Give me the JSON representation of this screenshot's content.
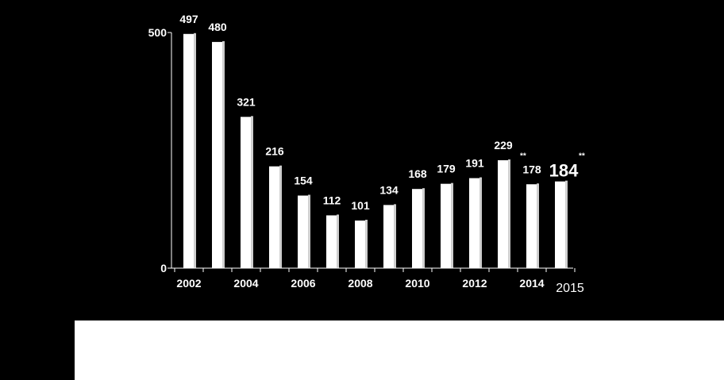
{
  "colors": {
    "background": "#000000",
    "bar": "#ffffff",
    "axis": "#ffffff",
    "text": "#ffffff",
    "panel": "#ffffff"
  },
  "chart_data": {
    "type": "bar",
    "categories": [
      "2002",
      "2003",
      "2004",
      "2005",
      "2006",
      "2007",
      "2008",
      "2009",
      "2010",
      "2011",
      "2012",
      "2013",
      "2014",
      "2015"
    ],
    "values": [
      497,
      480,
      321,
      216,
      154,
      112,
      101,
      134,
      168,
      179,
      191,
      229,
      178,
      184
    ],
    "data_labels": [
      "497",
      "480",
      "321",
      "216",
      "154",
      "112",
      "101",
      "134",
      "168",
      "179",
      "191",
      "229",
      "178",
      "184"
    ],
    "x_tick_labels": [
      {
        "category": "2002",
        "label": "2002"
      },
      {
        "category": "2004",
        "label": "2004"
      },
      {
        "category": "2006",
        "label": "2006"
      },
      {
        "category": "2008",
        "label": "2008"
      },
      {
        "category": "2010",
        "label": "2010"
      },
      {
        "category": "2012",
        "label": "2012"
      },
      {
        "category": "2014",
        "label": "2014"
      },
      {
        "category": "2015",
        "label": "2015"
      }
    ],
    "y_ticks": [
      {
        "value": 0,
        "label": "0"
      },
      {
        "value": 500,
        "label": "500"
      }
    ],
    "ylim": [
      0,
      500
    ],
    "annotations": [
      {
        "category": "2014",
        "text": "**"
      },
      {
        "category": "2015",
        "text": "**"
      }
    ],
    "highlighted_category": "2015",
    "grid": false,
    "title": "",
    "xlabel": "",
    "ylabel": ""
  }
}
